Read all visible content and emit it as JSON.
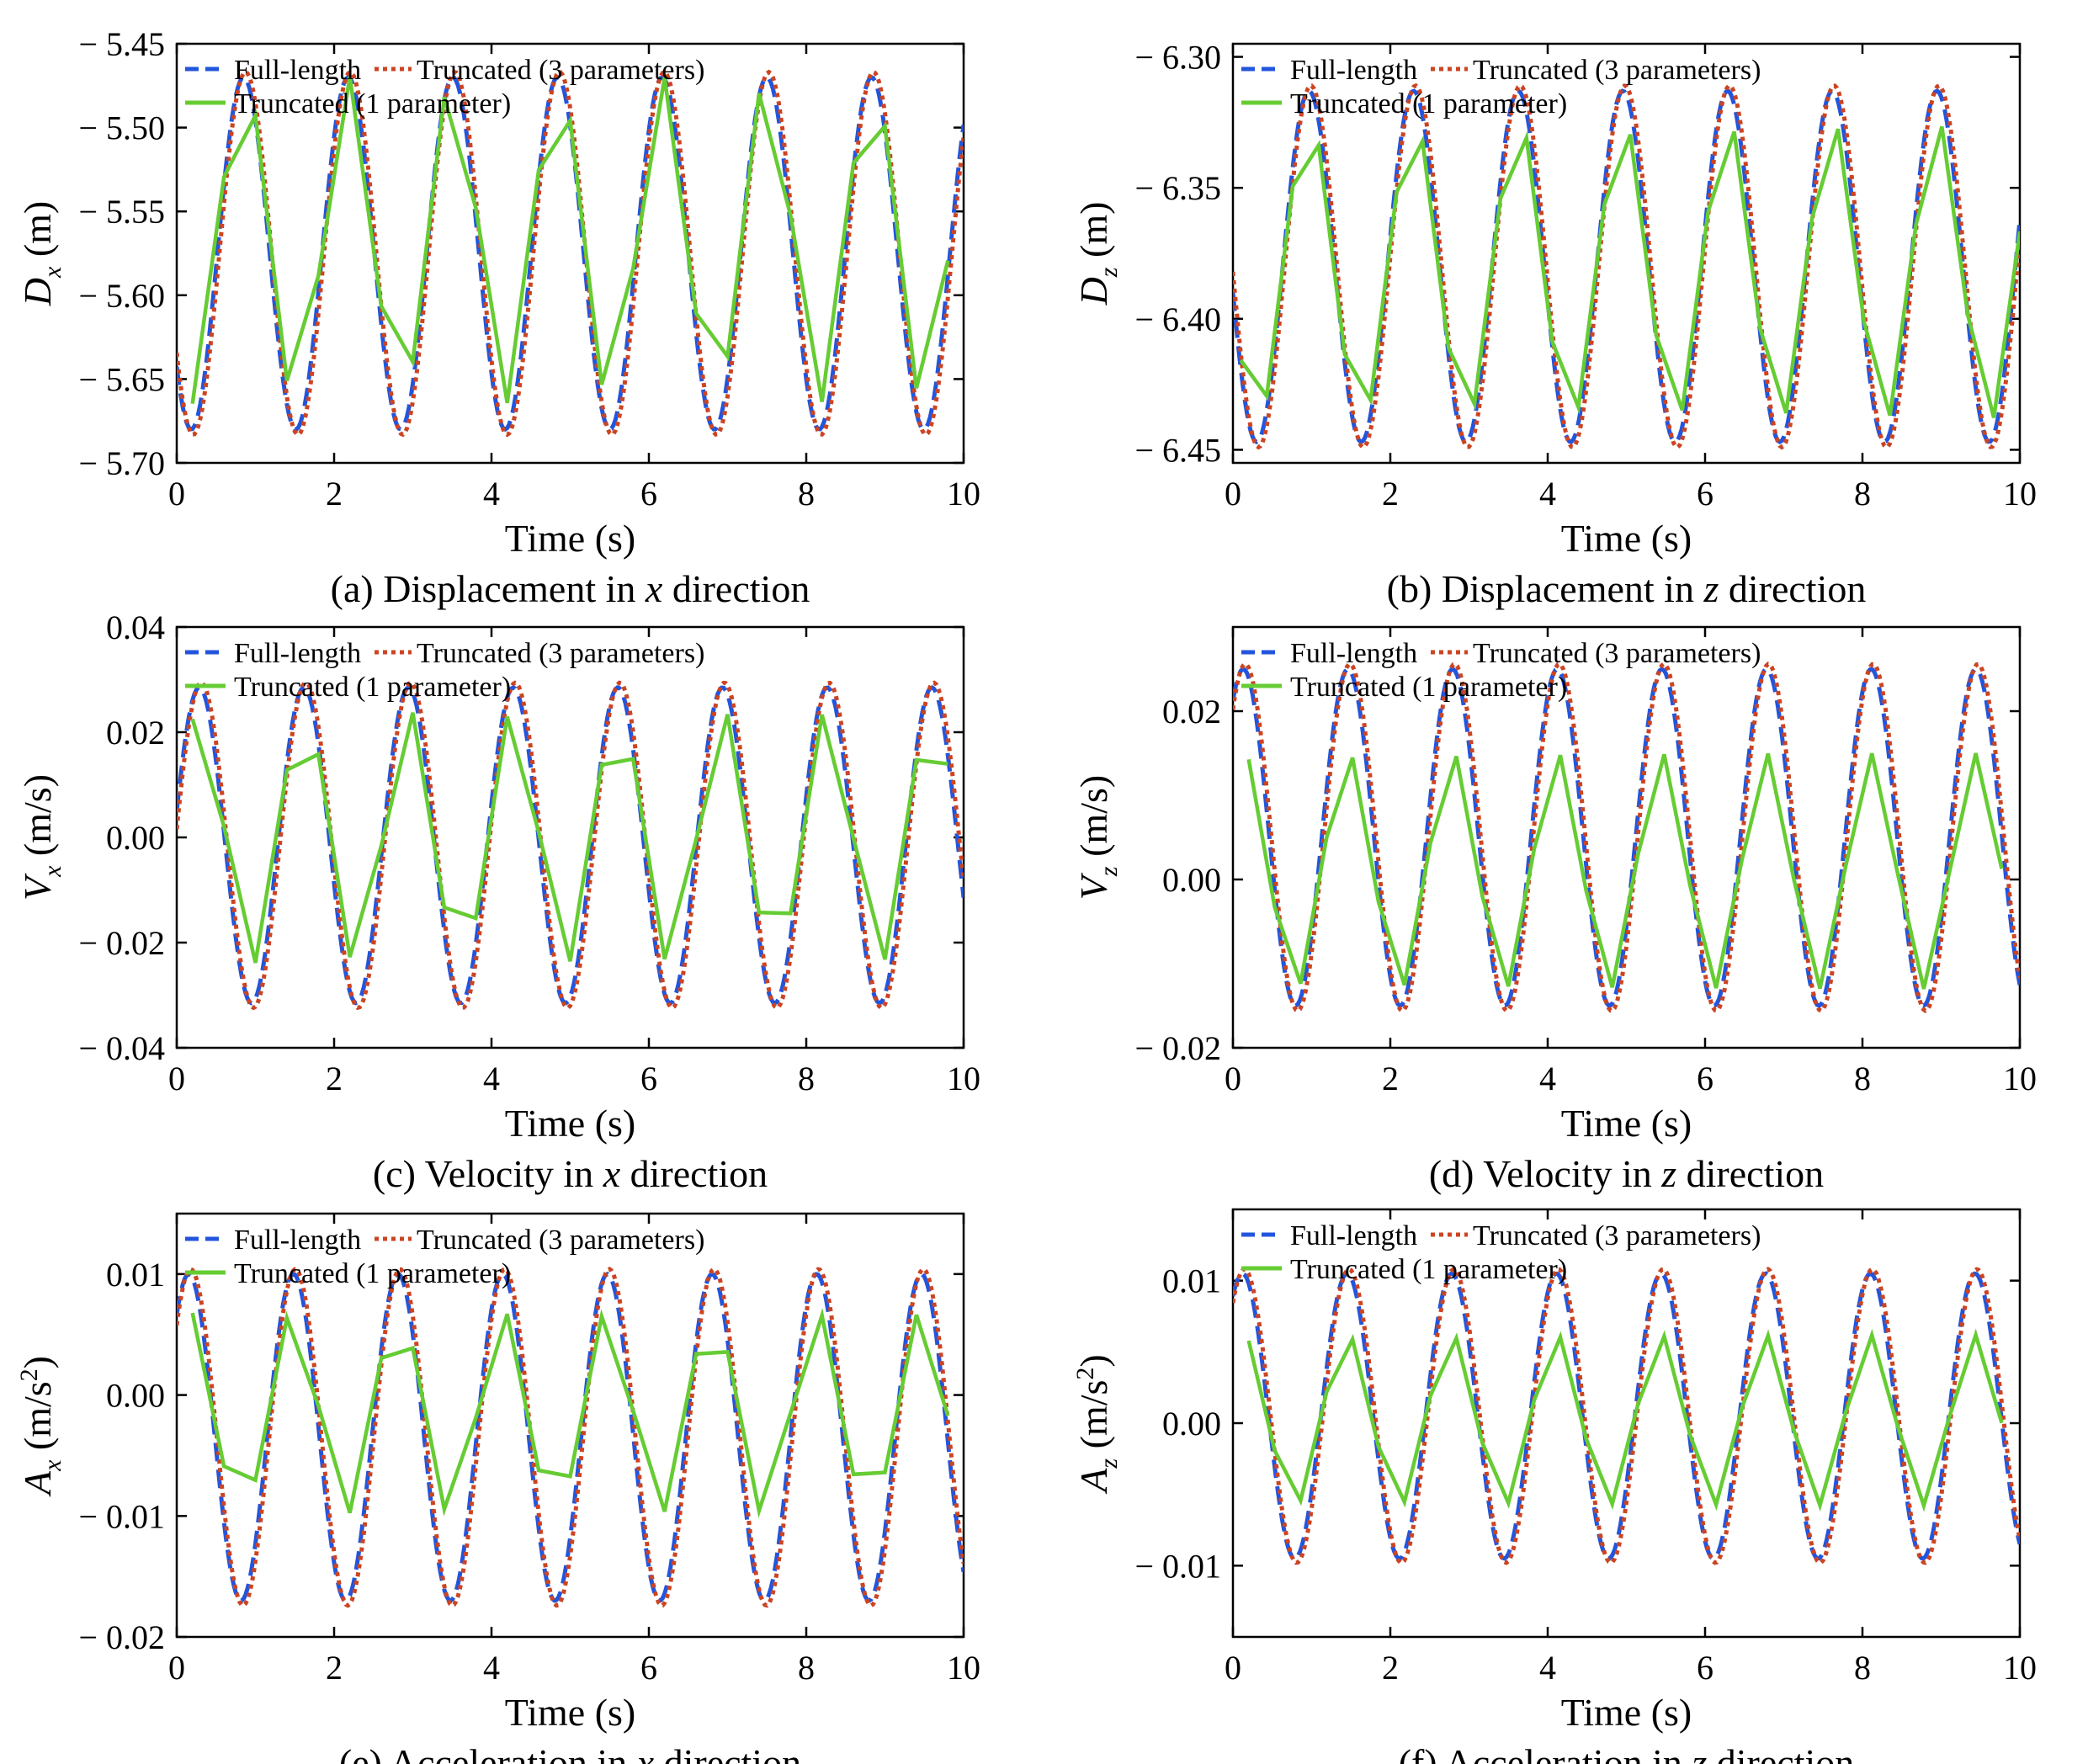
{
  "chart_data": [
    {
      "panel": "a",
      "type": "line",
      "caption": "(a) Displacement in x direction",
      "caption_parts": [
        "(a) Displacement in ",
        "x",
        " direction"
      ],
      "ylabel_main": "D",
      "ylabel_sub": "x",
      "ylabel_unit": " (m)",
      "ylabel_sup": "",
      "xlabel": "Time (s)",
      "xlim": [
        0,
        10
      ],
      "ylim": [
        5.7,
        5.45
      ],
      "y_inverted": true,
      "xticks": [
        "0",
        "2",
        "4",
        "6",
        "8",
        "10"
      ],
      "yticks": [
        {
          "v": 5.45,
          "label": "− 5.45"
        },
        {
          "v": 5.5,
          "label": "− 5.50"
        },
        {
          "v": 5.55,
          "label": "− 5.55"
        },
        {
          "v": 5.6,
          "label": "− 5.60"
        },
        {
          "v": 5.65,
          "label": "− 5.65"
        },
        {
          "v": 5.7,
          "label": "− 5.70"
        }
      ],
      "period": 1.33,
      "wave": {
        "mean": 5.575,
        "amp": 0.105,
        "phase": 0.7
      },
      "coarse": {
        "dt": 0.4,
        "mean": 5.567,
        "amp": 0.098,
        "phase": 0.7,
        "t0": 0.2
      },
      "series": [
        {
          "name": "Full-length",
          "color": "#2255dd",
          "style": "dash"
        },
        {
          "name": "Truncated (3 parameters)",
          "color": "#cc4422",
          "style": "dot"
        },
        {
          "name": "Truncated (1 parameter)",
          "color": "#66cc33",
          "style": "solid"
        }
      ]
    },
    {
      "panel": "b",
      "type": "line",
      "caption": "(b) Displacement in z direction",
      "caption_parts": [
        "(b) Displacement in ",
        "z",
        " direction"
      ],
      "ylabel_main": "D",
      "ylabel_sub": "z",
      "ylabel_unit": " (m)",
      "ylabel_sup": "",
      "xlabel": "Time (s)",
      "xlim": [
        0,
        10
      ],
      "ylim": [
        6.455,
        6.295
      ],
      "y_inverted": true,
      "xticks": [
        "0",
        "2",
        "4",
        "6",
        "8",
        "10"
      ],
      "yticks": [
        {
          "v": 6.3,
          "label": "− 6.30"
        },
        {
          "v": 6.35,
          "label": "− 6.35"
        },
        {
          "v": 6.4,
          "label": "− 6.40"
        },
        {
          "v": 6.45,
          "label": "− 6.45"
        }
      ],
      "period": 1.33,
      "wave": {
        "mean": 6.38,
        "amp": 0.067,
        "phase": 0.15
      },
      "coarse": {
        "dt": 0.33,
        "mean": 6.382,
        "amp": 0.058,
        "phase": 0.15,
        "t0": 0.1
      },
      "series": [
        {
          "name": "Full-length",
          "color": "#2255dd",
          "style": "dash"
        },
        {
          "name": "Truncated (3 parameters)",
          "color": "#cc4422",
          "style": "dot"
        },
        {
          "name": "Truncated (1 parameter)",
          "color": "#66cc33",
          "style": "solid"
        }
      ]
    },
    {
      "panel": "c",
      "type": "line",
      "caption": "(c) Velocity in x direction",
      "caption_parts": [
        "(c) Velocity in ",
        "x",
        " direction"
      ],
      "ylabel_main": "V",
      "ylabel_sub": "x",
      "ylabel_unit": " (m/s)",
      "ylabel_sup": "",
      "xlabel": "Time (s)",
      "xlim": [
        0,
        10
      ],
      "ylim": [
        -0.04,
        0.04
      ],
      "y_inverted": false,
      "xticks": [
        "0",
        "2",
        "4",
        "6",
        "8",
        "10"
      ],
      "yticks": [
        {
          "v": 0.04,
          "label": "0.04"
        },
        {
          "v": 0.02,
          "label": "0.02"
        },
        {
          "v": 0.0,
          "label": "0.00"
        },
        {
          "v": -0.02,
          "label": "− 0.02"
        },
        {
          "v": -0.04,
          "label": "− 0.04"
        }
      ],
      "period": 1.33,
      "wave": {
        "mean": -0.0015,
        "amp": 0.03,
        "phase": 0.22
      },
      "coarse": {
        "dt": 0.4,
        "mean": 0.0,
        "amp": 0.0245,
        "phase": 0.22,
        "t0": 0.2
      },
      "series": [
        {
          "name": "Full-length",
          "color": "#2255dd",
          "style": "dash"
        },
        {
          "name": "Truncated (3 parameters)",
          "color": "#cc4422",
          "style": "dot"
        },
        {
          "name": "Truncated (1 parameter)",
          "color": "#66cc33",
          "style": "solid"
        }
      ]
    },
    {
      "panel": "d",
      "type": "line",
      "caption": "(d) Velocity in z direction",
      "caption_parts": [
        "(d) Velocity in ",
        "z",
        " direction"
      ],
      "ylabel_main": "V",
      "ylabel_sub": "z",
      "ylabel_unit": " (m/s)",
      "ylabel_sup": "",
      "xlabel": "Time (s)",
      "xlim": [
        0,
        10
      ],
      "ylim": [
        -0.02,
        0.03
      ],
      "y_inverted": false,
      "xticks": [
        "0",
        "2",
        "4",
        "6",
        "8",
        "10"
      ],
      "yticks": [
        {
          "v": 0.02,
          "label": "0.02"
        },
        {
          "v": 0.0,
          "label": "0.00"
        },
        {
          "v": -0.02,
          "label": "− 0.02"
        }
      ],
      "period": 1.33,
      "wave": {
        "mean": 0.005,
        "amp": 0.02,
        "phase": 0.95
      },
      "coarse": {
        "dt": 0.33,
        "mean": 0.001,
        "amp": 0.014,
        "phase": 0.95,
        "t0": 0.2
      },
      "series": [
        {
          "name": "Full-length",
          "color": "#2255dd",
          "style": "dash"
        },
        {
          "name": "Truncated (3 parameters)",
          "color": "#cc4422",
          "style": "dot"
        },
        {
          "name": "Truncated (1 parameter)",
          "color": "#66cc33",
          "style": "solid"
        }
      ]
    },
    {
      "panel": "e",
      "type": "line",
      "caption": "(e) Acceleration in x direction",
      "caption_parts": [
        "(e) Acceleration in ",
        "x",
        " direction"
      ],
      "ylabel_main": "A",
      "ylabel_sub": "x",
      "ylabel_unit": " (m/s",
      "ylabel_sup": "2",
      "xlabel": "Time (s)",
      "xlim": [
        0,
        10
      ],
      "ylim": [
        -0.02,
        0.015
      ],
      "y_inverted": false,
      "xticks": [
        "0",
        "2",
        "4",
        "6",
        "8",
        "10"
      ],
      "yticks": [
        {
          "v": 0.01,
          "label": "0.01"
        },
        {
          "v": 0.0,
          "label": "0.00"
        },
        {
          "v": -0.01,
          "label": "− 0.01"
        },
        {
          "v": -0.02,
          "label": "− 0.02"
        }
      ],
      "period": 1.33,
      "wave": {
        "mean": -0.0035,
        "amp": 0.0135,
        "phase": 0.85
      },
      "coarse": {
        "dt": 0.4,
        "mean": -0.0015,
        "amp": 0.0085,
        "phase": 0.85,
        "t0": 0.2
      },
      "series": [
        {
          "name": "Full-length",
          "color": "#2255dd",
          "style": "dash"
        },
        {
          "name": "Truncated (3 parameters)",
          "color": "#cc4422",
          "style": "dot"
        },
        {
          "name": "Truncated (1 parameter)",
          "color": "#66cc33",
          "style": "solid"
        }
      ]
    },
    {
      "panel": "f",
      "type": "line",
      "caption": "(f) Acceleration in z direction",
      "caption_parts": [
        "(f) Acceleration in ",
        "z",
        " direction"
      ],
      "ylabel_main": "A",
      "ylabel_sub": "z",
      "ylabel_unit": " (m/s",
      "ylabel_sup": "2",
      "xlabel": "Time (s)",
      "xlim": [
        0,
        10
      ],
      "ylim": [
        -0.015,
        0.015
      ],
      "y_inverted": false,
      "xticks": [
        "0",
        "2",
        "4",
        "6",
        "8",
        "10"
      ],
      "yticks": [
        {
          "v": 0.01,
          "label": "0.01"
        },
        {
          "v": 0.0,
          "label": "0.00"
        },
        {
          "v": -0.01,
          "label": "− 0.01"
        }
      ],
      "period": 1.33,
      "wave": {
        "mean": 0.0005,
        "amp": 0.01,
        "phase": 1.0
      },
      "coarse": {
        "dt": 0.33,
        "mean": 0.0002,
        "amp": 0.006,
        "phase": 1.0,
        "t0": 0.2
      },
      "series": [
        {
          "name": "Full-length",
          "color": "#2255dd",
          "style": "dash"
        },
        {
          "name": "Truncated (3 parameters)",
          "color": "#cc4422",
          "style": "dot"
        },
        {
          "name": "Truncated (1 parameter)",
          "color": "#66cc33",
          "style": "solid"
        }
      ]
    }
  ]
}
